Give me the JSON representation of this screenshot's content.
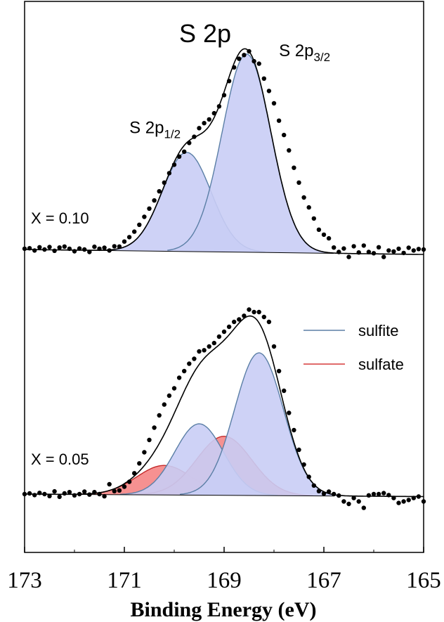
{
  "chart_data": {
    "type": "line",
    "title": "S 2p",
    "xlabel": "Binding Energy (eV)",
    "ylabel": "",
    "xlim": [
      173,
      165
    ],
    "x_reversed": true,
    "xticks": [
      "173",
      "171",
      "169",
      "167",
      "165"
    ],
    "grid": false,
    "legend": {
      "placement": "right-middle",
      "entries": [
        {
          "label": "sulfite",
          "color": "#5b7fa6"
        },
        {
          "label": "sulfate",
          "color": "#d63a3a"
        }
      ]
    },
    "colors": {
      "sulfite_fill": "#c9cdf5",
      "sulfite_line": "#5b7fa6",
      "sulfate_fill": "#f58b8b",
      "sulfate_line": "#c42a2a",
      "envelope": "#000000",
      "points": "#000000"
    },
    "panels": [
      {
        "label": "X = 0.10",
        "baseline": {
          "left": 0.0,
          "right": -0.02
        },
        "components": [
          {
            "name": "S 2p1/2",
            "kind": "sulfite",
            "center": 169.75,
            "amplitude": 0.4,
            "fwhm": 1.15
          },
          {
            "name": "S 2p3/2",
            "kind": "sulfite",
            "center": 168.55,
            "amplitude": 0.8,
            "fwhm": 1.15
          }
        ],
        "annotations": [
          {
            "base": "S 2p",
            "sub": "1/2",
            "x": 170.9,
            "y": 0.47
          },
          {
            "base": "S 2p",
            "sub": "3/2",
            "x": 167.9,
            "y": 0.78
          }
        ],
        "points": [
          [
            173.0,
            0.003
          ],
          [
            172.9,
            0.005
          ],
          [
            172.8,
            -0.004
          ],
          [
            172.7,
            0.009
          ],
          [
            172.6,
            0.0
          ],
          [
            172.5,
            0.01
          ],
          [
            172.4,
            -0.005
          ],
          [
            172.3,
            0.008
          ],
          [
            172.2,
            0.012
          ],
          [
            172.1,
            0.003
          ],
          [
            172.0,
            -0.007
          ],
          [
            171.9,
            0.004
          ],
          [
            171.8,
            0.0
          ],
          [
            171.7,
            -0.01
          ],
          [
            171.6,
            0.011
          ],
          [
            171.5,
            0.003
          ],
          [
            171.4,
            0.007
          ],
          [
            171.3,
            -0.004
          ],
          [
            171.2,
            0.013
          ],
          [
            171.1,
            0.012
          ],
          [
            171.0,
            0.032
          ],
          [
            170.9,
            0.05
          ],
          [
            170.8,
            0.072
          ],
          [
            170.7,
            0.1
          ],
          [
            170.6,
            0.132
          ],
          [
            170.5,
            0.165
          ],
          [
            170.4,
            0.198
          ],
          [
            170.3,
            0.235
          ],
          [
            170.2,
            0.27
          ],
          [
            170.1,
            0.308
          ],
          [
            170.0,
            0.342
          ],
          [
            169.9,
            0.375
          ],
          [
            169.8,
            0.395
          ],
          [
            169.7,
            0.43
          ],
          [
            169.6,
            0.455
          ],
          [
            169.5,
            0.49
          ],
          [
            169.4,
            0.51
          ],
          [
            169.3,
            0.525
          ],
          [
            169.2,
            0.55
          ],
          [
            169.1,
            0.578
          ],
          [
            169.0,
            0.623
          ],
          [
            168.9,
            0.68
          ],
          [
            168.8,
            0.735
          ],
          [
            168.7,
            0.77
          ],
          [
            168.6,
            0.785
          ],
          [
            168.5,
            0.8
          ],
          [
            168.4,
            0.76
          ],
          [
            168.3,
            0.75
          ],
          [
            168.2,
            0.69
          ],
          [
            168.1,
            0.64
          ],
          [
            168.0,
            0.59
          ],
          [
            167.9,
            0.52
          ],
          [
            167.8,
            0.462
          ],
          [
            167.7,
            0.4
          ],
          [
            167.6,
            0.33
          ],
          [
            167.5,
            0.27
          ],
          [
            167.4,
            0.21
          ],
          [
            167.3,
            0.17
          ],
          [
            167.2,
            0.125
          ],
          [
            167.1,
            0.08
          ],
          [
            167.0,
            0.06
          ],
          [
            166.9,
            0.045
          ],
          [
            166.8,
            0.008
          ],
          [
            166.7,
            -0.01
          ],
          [
            166.6,
            0.004
          ],
          [
            166.5,
            -0.03
          ],
          [
            166.4,
            0.013
          ],
          [
            166.3,
            -0.012
          ],
          [
            166.2,
            0.016
          ],
          [
            166.1,
            -0.01
          ],
          [
            166.0,
            -0.015
          ],
          [
            165.9,
            0.009
          ],
          [
            165.8,
            -0.03
          ],
          [
            165.7,
            -0.004
          ],
          [
            165.6,
            -0.008
          ],
          [
            165.5,
            0.003
          ],
          [
            165.4,
            -0.014
          ],
          [
            165.3,
            0.007
          ],
          [
            165.2,
            -0.004
          ],
          [
            165.1,
            0.002
          ],
          [
            165.0,
            0.0
          ]
        ]
      },
      {
        "label": "X = 0.05",
        "baseline": {
          "left": 0.0,
          "right": -0.01
        },
        "components": [
          {
            "name": "sulfate 2p1/2",
            "kind": "sulfate",
            "center": 170.2,
            "amplitude": 0.12,
            "fwhm": 1.3
          },
          {
            "name": "sulfate 2p3/2",
            "kind": "sulfate",
            "center": 169.0,
            "amplitude": 0.24,
            "fwhm": 1.3
          },
          {
            "name": "sulfite 2p1/2",
            "kind": "sulfite",
            "center": 169.5,
            "amplitude": 0.29,
            "fwhm": 1.15
          },
          {
            "name": "sulfite 2p3/2",
            "kind": "sulfite",
            "center": 168.3,
            "amplitude": 0.58,
            "fwhm": 1.15
          }
        ],
        "points": [
          [
            173.0,
            0.0
          ],
          [
            172.9,
            0.003
          ],
          [
            172.8,
            -0.004
          ],
          [
            172.7,
            0.005
          ],
          [
            172.6,
            0.0
          ],
          [
            172.5,
            -0.008
          ],
          [
            172.4,
            0.011
          ],
          [
            172.3,
            -0.011
          ],
          [
            172.2,
            0.003
          ],
          [
            172.1,
            0.008
          ],
          [
            172.0,
            -0.005
          ],
          [
            171.9,
            0.0
          ],
          [
            171.8,
            0.01
          ],
          [
            171.7,
            -0.002
          ],
          [
            171.6,
            0.008
          ],
          [
            171.5,
            0.0
          ],
          [
            171.4,
            -0.009
          ],
          [
            171.3,
            0.04
          ],
          [
            171.2,
            0.012
          ],
          [
            171.1,
            0.015
          ],
          [
            171.0,
            0.03
          ],
          [
            170.9,
            0.05
          ],
          [
            170.8,
            0.085
          ],
          [
            170.7,
            0.125
          ],
          [
            170.6,
            0.17
          ],
          [
            170.5,
            0.22
          ],
          [
            170.4,
            0.27
          ],
          [
            170.3,
            0.32
          ],
          [
            170.2,
            0.364
          ],
          [
            170.1,
            0.4
          ],
          [
            170.0,
            0.43
          ],
          [
            169.9,
            0.473
          ],
          [
            169.8,
            0.5
          ],
          [
            169.7,
            0.53
          ],
          [
            169.6,
            0.55
          ],
          [
            169.5,
            0.58
          ],
          [
            169.4,
            0.585
          ],
          [
            169.3,
            0.6
          ],
          [
            169.2,
            0.614
          ],
          [
            169.1,
            0.64
          ],
          [
            169.0,
            0.66
          ],
          [
            168.9,
            0.68
          ],
          [
            168.8,
            0.7
          ],
          [
            168.7,
            0.71
          ],
          [
            168.6,
            0.725
          ],
          [
            168.5,
            0.75
          ],
          [
            168.4,
            0.74
          ],
          [
            168.3,
            0.74
          ],
          [
            168.2,
            0.72
          ],
          [
            168.1,
            0.7
          ],
          [
            168.0,
            0.6
          ],
          [
            167.9,
            0.5
          ],
          [
            167.8,
            0.42
          ],
          [
            167.7,
            0.33
          ],
          [
            167.6,
            0.26
          ],
          [
            167.5,
            0.18
          ],
          [
            167.4,
            0.12
          ],
          [
            167.3,
            0.07
          ],
          [
            167.2,
            0.035
          ],
          [
            167.1,
            0.012
          ],
          [
            167.0,
            0.002
          ],
          [
            166.9,
            0.01
          ],
          [
            166.8,
            0.0
          ],
          [
            166.7,
            -0.006
          ],
          [
            166.6,
            -0.03
          ],
          [
            166.5,
            -0.04
          ],
          [
            166.4,
            -0.016
          ],
          [
            166.3,
            -0.03
          ],
          [
            166.2,
            -0.056
          ],
          [
            166.1,
            -0.005
          ],
          [
            166.0,
            0.0
          ],
          [
            165.9,
            0.0
          ],
          [
            165.8,
            0.004
          ],
          [
            165.7,
            -0.004
          ],
          [
            165.6,
            -0.016
          ],
          [
            165.5,
            -0.036
          ],
          [
            165.4,
            -0.03
          ],
          [
            165.3,
            -0.024
          ],
          [
            165.2,
            -0.016
          ],
          [
            165.1,
            -0.01
          ],
          [
            165.0,
            -0.03
          ]
        ]
      }
    ]
  }
}
